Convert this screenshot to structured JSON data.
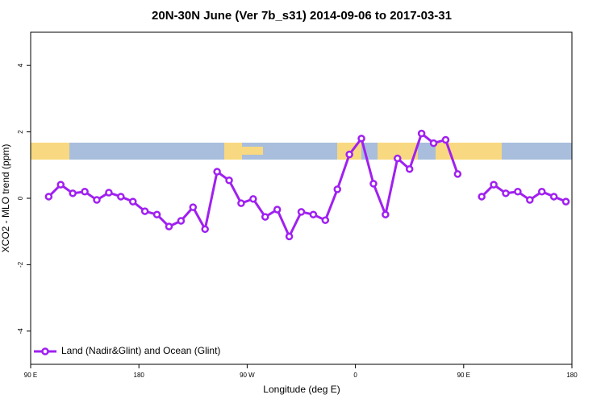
{
  "chart_data": {
    "type": "line",
    "title": "20N-30N June (Ver 7b_s31)   2014-09-06 to 2017-03-31",
    "x_label": "Longitude (deg E)",
    "y_label": "XCO2 - MLO trend (ppm)",
    "x": [
      105,
      115,
      125,
      135,
      145,
      155,
      165,
      175,
      185,
      195,
      205,
      215,
      225,
      235,
      245,
      255,
      265,
      275,
      285,
      295,
      305,
      315,
      325,
      335,
      345,
      355,
      365,
      375,
      385,
      395,
      405,
      415,
      425,
      435,
      445,
      455,
      465,
      475,
      485,
      495,
      505,
      515,
      525,
      535
    ],
    "series": [
      {
        "name": "Land (Nadir&Glint) and Ocean (Glint)",
        "color": "#a020f0",
        "values": [
          0.05,
          0.41,
          0.15,
          0.2,
          -0.05,
          0.17,
          0.05,
          -0.1,
          -0.39,
          -0.49,
          -0.85,
          -0.68,
          -0.27,
          -0.93,
          0.8,
          0.54,
          -0.15,
          -0.02,
          -0.56,
          -0.34,
          -1.15,
          -0.41,
          -0.49,
          -0.66,
          0.27,
          1.32,
          1.8,
          0.44,
          -0.49,
          1.2,
          0.88,
          1.95,
          1.66,
          1.76,
          0.73,
          null,
          0.05,
          0.41,
          0.15,
          0.2,
          -0.05,
          0.2,
          0.05,
          -0.1
        ]
      }
    ],
    "xlim": [
      90,
      540
    ],
    "xticks": [
      {
        "value": 90,
        "label": "90 E"
      },
      180,
      {
        "value": 270,
        "label": "90 W"
      },
      {
        "value": 360,
        "label": "0"
      },
      {
        "value": 450,
        "label": "90 E"
      },
      {
        "value": 540,
        "label": "180"
      }
    ],
    "ylim": [
      -5,
      5
    ],
    "yticks": [
      -4,
      -2,
      0,
      2,
      4
    ],
    "legend": "bottom-left"
  }
}
